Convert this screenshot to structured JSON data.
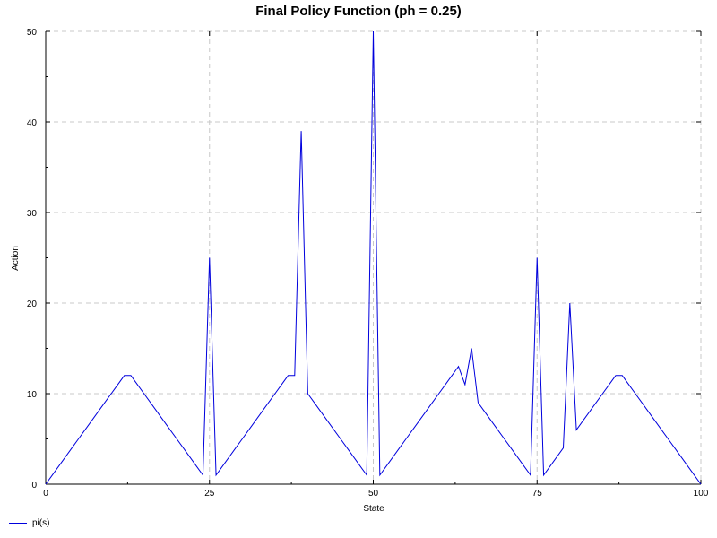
{
  "chart_data": {
    "type": "line",
    "title": "Final Policy Function (ph = 0.25)",
    "xlabel": "State",
    "ylabel": "Action",
    "xlim": [
      0,
      100
    ],
    "ylim": [
      0,
      50
    ],
    "x_ticks": [
      0,
      25,
      50,
      75,
      100
    ],
    "y_ticks": [
      0,
      10,
      20,
      30,
      40,
      50
    ],
    "grid": true,
    "legend_position": "bottom-left",
    "series": [
      {
        "name": "pi(s)",
        "color": "#0000dd",
        "points": [
          [
            0,
            0
          ],
          [
            1,
            1
          ],
          [
            2,
            2
          ],
          [
            3,
            3
          ],
          [
            4,
            4
          ],
          [
            5,
            5
          ],
          [
            6,
            6
          ],
          [
            7,
            7
          ],
          [
            8,
            8
          ],
          [
            9,
            9
          ],
          [
            10,
            10
          ],
          [
            11,
            11
          ],
          [
            12,
            12
          ],
          [
            13,
            12
          ],
          [
            14,
            11
          ],
          [
            15,
            10
          ],
          [
            16,
            9
          ],
          [
            17,
            8
          ],
          [
            18,
            7
          ],
          [
            19,
            6
          ],
          [
            20,
            5
          ],
          [
            21,
            4
          ],
          [
            22,
            3
          ],
          [
            23,
            2
          ],
          [
            24,
            1
          ],
          [
            25,
            25
          ],
          [
            26,
            1
          ],
          [
            27,
            2
          ],
          [
            28,
            3
          ],
          [
            29,
            4
          ],
          [
            30,
            5
          ],
          [
            31,
            6
          ],
          [
            32,
            7
          ],
          [
            33,
            8
          ],
          [
            34,
            9
          ],
          [
            35,
            10
          ],
          [
            36,
            11
          ],
          [
            37,
            12
          ],
          [
            38,
            12
          ],
          [
            39,
            39
          ],
          [
            40,
            10
          ],
          [
            41,
            9
          ],
          [
            42,
            8
          ],
          [
            43,
            7
          ],
          [
            44,
            6
          ],
          [
            45,
            5
          ],
          [
            46,
            4
          ],
          [
            47,
            3
          ],
          [
            48,
            2
          ],
          [
            49,
            1
          ],
          [
            50,
            50
          ],
          [
            51,
            1
          ],
          [
            52,
            2
          ],
          [
            53,
            3
          ],
          [
            54,
            4
          ],
          [
            55,
            5
          ],
          [
            56,
            6
          ],
          [
            57,
            7
          ],
          [
            58,
            8
          ],
          [
            59,
            9
          ],
          [
            60,
            10
          ],
          [
            61,
            11
          ],
          [
            62,
            12
          ],
          [
            63,
            13
          ],
          [
            64,
            11
          ],
          [
            65,
            15
          ],
          [
            66,
            9
          ],
          [
            67,
            8
          ],
          [
            68,
            7
          ],
          [
            69,
            6
          ],
          [
            70,
            5
          ],
          [
            71,
            4
          ],
          [
            72,
            3
          ],
          [
            73,
            2
          ],
          [
            74,
            1
          ],
          [
            75,
            25
          ],
          [
            76,
            1
          ],
          [
            77,
            2
          ],
          [
            78,
            3
          ],
          [
            79,
            4
          ],
          [
            80,
            20
          ],
          [
            81,
            6
          ],
          [
            82,
            7
          ],
          [
            83,
            8
          ],
          [
            84,
            9
          ],
          [
            85,
            10
          ],
          [
            86,
            11
          ],
          [
            87,
            12
          ],
          [
            88,
            12
          ],
          [
            89,
            11
          ],
          [
            90,
            10
          ],
          [
            91,
            9
          ],
          [
            92,
            8
          ],
          [
            93,
            7
          ],
          [
            94,
            6
          ],
          [
            95,
            5
          ],
          [
            96,
            4
          ],
          [
            97,
            3
          ],
          [
            98,
            2
          ],
          [
            99,
            1
          ],
          [
            100,
            0
          ]
        ]
      }
    ]
  }
}
